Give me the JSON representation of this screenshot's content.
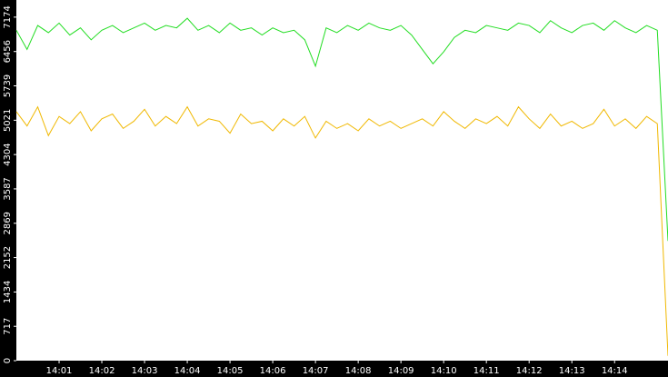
{
  "chart_data": {
    "type": "line",
    "x": [
      0,
      0.25,
      0.5,
      0.75,
      1,
      1.25,
      1.5,
      1.75,
      2,
      2.25,
      2.5,
      2.75,
      3,
      3.25,
      3.5,
      3.75,
      4,
      4.25,
      4.5,
      4.75,
      5,
      5.25,
      5.5,
      5.75,
      6,
      6.25,
      6.5,
      6.75,
      7,
      7.25,
      7.5,
      7.75,
      8,
      8.25,
      8.5,
      8.75,
      9,
      9.25,
      9.5,
      9.75,
      10,
      10.25,
      10.5,
      10.75,
      11,
      11.25,
      11.5,
      11.75,
      12,
      12.25,
      12.5,
      12.75,
      13,
      13.25,
      13.5,
      13.75,
      14,
      14.25,
      14.5,
      14.75,
      15,
      15.25
    ],
    "series": [
      {
        "color": "#22dd22",
        "values": [
          6900,
          6500,
          7000,
          6850,
          7050,
          6800,
          6950,
          6700,
          6900,
          7000,
          6850,
          6950,
          7050,
          6900,
          7000,
          6950,
          7150,
          6900,
          7000,
          6850,
          7050,
          6900,
          6950,
          6800,
          6950,
          6850,
          6900,
          6700,
          6150,
          6950,
          6850,
          7000,
          6900,
          7050,
          6950,
          6900,
          7000,
          6800,
          6500,
          6200,
          6450,
          6750,
          6900,
          6850,
          7000,
          6950,
          6900,
          7050,
          7000,
          6850,
          7100,
          6950,
          6850,
          7000,
          7050,
          6900,
          7100,
          6950,
          6850,
          7000,
          6900,
          2500
        ]
      },
      {
        "color": "#f0b800",
        "values": [
          5200,
          4900,
          5300,
          4700,
          5100,
          4950,
          5200,
          4800,
          5050,
          5150,
          4850,
          5000,
          5250,
          4900,
          5100,
          4950,
          5300,
          4900,
          5050,
          5000,
          4750,
          5150,
          4950,
          5000,
          4800,
          5050,
          4900,
          5100,
          4650,
          5000,
          4850,
          4950,
          4800,
          5050,
          4900,
          5000,
          4850,
          4950,
          5050,
          4900,
          5200,
          5000,
          4850,
          5050,
          4950,
          5100,
          4900,
          5300,
          5050,
          4850,
          5150,
          4900,
          5000,
          4850,
          4950,
          5250,
          4900,
          5050,
          4850,
          5100,
          4950,
          100
        ]
      }
    ],
    "xlim": [
      0,
      15.25
    ],
    "xticks": [
      {
        "value": 1,
        "label": "14:01"
      },
      {
        "value": 2,
        "label": "14:02"
      },
      {
        "value": 3,
        "label": "14:03"
      },
      {
        "value": 4,
        "label": "14:04"
      },
      {
        "value": 5,
        "label": "14:05"
      },
      {
        "value": 6,
        "label": "14:06"
      },
      {
        "value": 7,
        "label": "14:07"
      },
      {
        "value": 8,
        "label": "14:08"
      },
      {
        "value": 9,
        "label": "14:09"
      },
      {
        "value": 10,
        "label": "14:10"
      },
      {
        "value": 11,
        "label": "14:11"
      },
      {
        "value": 12,
        "label": "14:12"
      },
      {
        "value": 13,
        "label": "14:13"
      },
      {
        "value": 14,
        "label": "14:14"
      }
    ],
    "ylim": [
      0,
      7532
    ],
    "yticks": [
      0,
      717,
      1434,
      2152,
      2869,
      3587,
      4304,
      5021,
      5739,
      6456,
      7174
    ]
  }
}
